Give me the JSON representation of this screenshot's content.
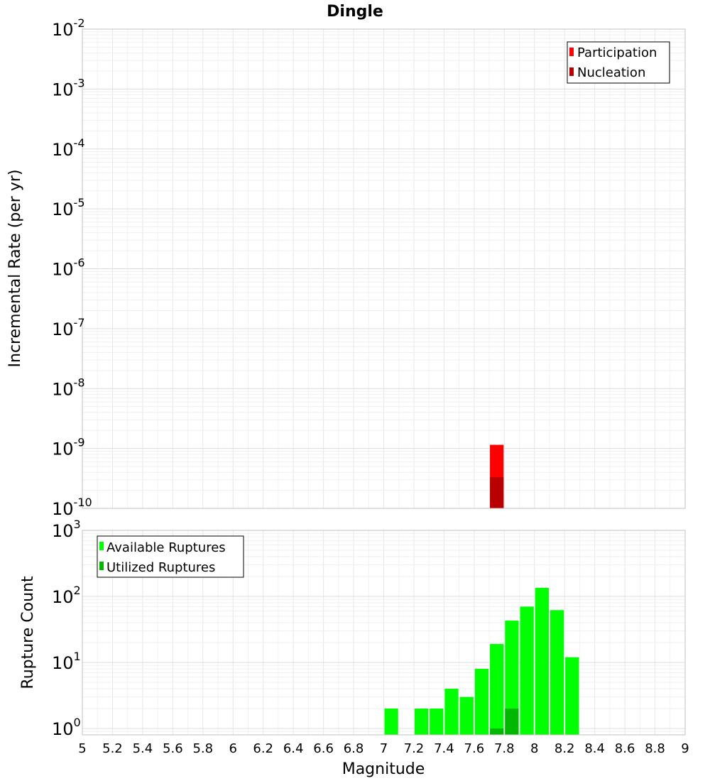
{
  "chart_data": [
    {
      "type": "bar",
      "title": "Dingle",
      "xlabel": "",
      "ylabel": "Incremental Rate (per yr)",
      "y_scale": "log",
      "ylim": [
        1e-10,
        0.01
      ],
      "xlim": [
        5,
        9
      ],
      "bin_width": 0.1,
      "y_tick_labels": [
        {
          "base": "10",
          "exp": "-2"
        },
        {
          "base": "10",
          "exp": "-3"
        },
        {
          "base": "10",
          "exp": "-4"
        },
        {
          "base": "10",
          "exp": "-5"
        },
        {
          "base": "10",
          "exp": "-6"
        },
        {
          "base": "10",
          "exp": "-7"
        },
        {
          "base": "10",
          "exp": "-8"
        },
        {
          "base": "10",
          "exp": "-9"
        },
        {
          "base": "10",
          "exp": "-10"
        }
      ],
      "legend_position": "top-right",
      "series": [
        {
          "name": "Participation",
          "color": "#ff0000",
          "x": [
            7.75
          ],
          "values": [
            1.15e-09
          ]
        },
        {
          "name": "Nucleation",
          "color": "#b80000",
          "x": [
            7.75
          ],
          "values": [
            3.3e-10
          ]
        }
      ],
      "grid": true
    },
    {
      "type": "bar",
      "title": "",
      "xlabel": "Magnitude",
      "ylabel": "Rupture Count",
      "y_scale": "log",
      "ylim": [
        0.8,
        1000
      ],
      "xlim": [
        5,
        9
      ],
      "bin_width": 0.1,
      "x_ticks": [
        "5",
        "5.2",
        "5.4",
        "5.6",
        "5.8",
        "6",
        "6.2",
        "6.4",
        "6.6",
        "6.8",
        "7",
        "7.2",
        "7.4",
        "7.6",
        "7.8",
        "8",
        "8.2",
        "8.4",
        "8.6",
        "8.8",
        "9"
      ],
      "y_tick_labels": [
        {
          "base": "10",
          "exp": "3"
        },
        {
          "base": "10",
          "exp": "2"
        },
        {
          "base": "10",
          "exp": "1"
        },
        {
          "base": "10",
          "exp": "0"
        }
      ],
      "legend_position": "top-left",
      "series": [
        {
          "name": "Available Ruptures",
          "color": "#00ff00",
          "x": [
            7.05,
            7.25,
            7.35,
            7.45,
            7.55,
            7.65,
            7.75,
            7.85,
            7.95,
            8.05,
            8.15,
            8.25
          ],
          "values": [
            2,
            2,
            2,
            4,
            3,
            8,
            19,
            43,
            70,
            135,
            62,
            12
          ]
        },
        {
          "name": "Utilized Ruptures",
          "color": "#00b800",
          "x": [
            7.75,
            7.85
          ],
          "values": [
            1,
            2
          ]
        }
      ],
      "grid": true
    }
  ]
}
